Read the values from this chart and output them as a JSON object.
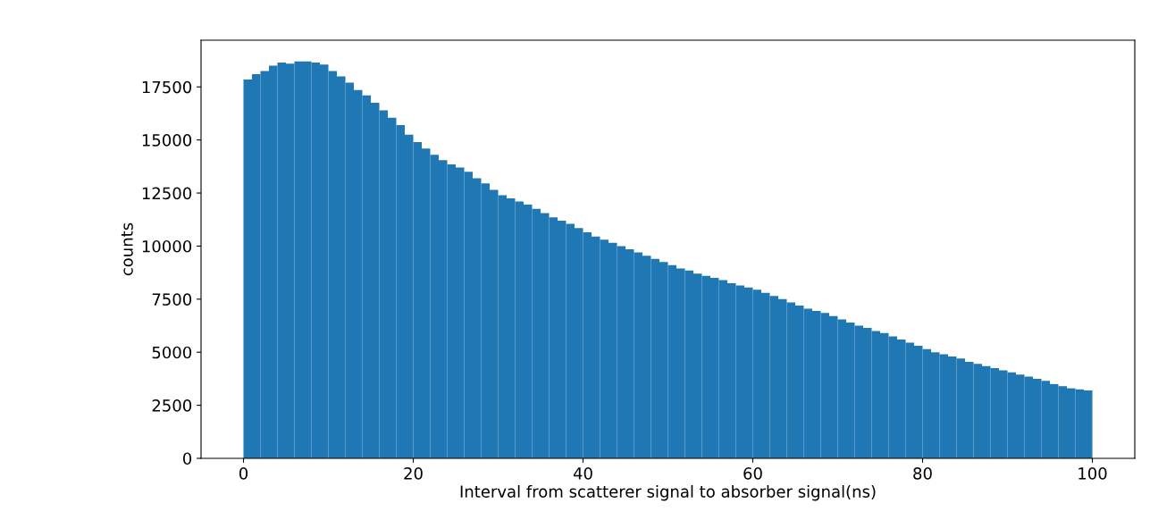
{
  "chart_data": {
    "type": "histogram",
    "xlabel": "Interval from scatterer signal to absorber signal(ns)",
    "ylabel": "counts",
    "color": "#1f77b4",
    "bins": [
      0,
      1,
      2,
      3,
      4,
      5,
      6,
      7,
      8,
      9,
      10,
      11,
      12,
      13,
      14,
      15,
      16,
      17,
      18,
      19,
      20,
      21,
      22,
      23,
      24,
      25,
      26,
      27,
      28,
      29,
      30,
      31,
      32,
      33,
      34,
      35,
      36,
      37,
      38,
      39,
      40,
      41,
      42,
      43,
      44,
      45,
      46,
      47,
      48,
      49,
      50,
      51,
      52,
      53,
      54,
      55,
      56,
      57,
      58,
      59,
      60,
      61,
      62,
      63,
      64,
      65,
      66,
      67,
      68,
      69,
      70,
      71,
      72,
      73,
      74,
      75,
      76,
      77,
      78,
      79,
      80,
      81,
      82,
      83,
      84,
      85,
      86,
      87,
      88,
      89,
      90,
      91,
      92,
      93,
      94,
      95,
      96,
      97,
      98,
      99,
      100
    ],
    "values": [
      17850,
      18100,
      18250,
      18500,
      18650,
      18600,
      18700,
      18700,
      18650,
      18550,
      18250,
      18000,
      17700,
      17350,
      17100,
      16750,
      16400,
      16050,
      15700,
      15250,
      14900,
      14600,
      14300,
      14050,
      13850,
      13700,
      13500,
      13200,
      12950,
      12650,
      12400,
      12250,
      12100,
      11950,
      11750,
      11550,
      11350,
      11200,
      11050,
      10850,
      10650,
      10450,
      10300,
      10150,
      10000,
      9850,
      9700,
      9550,
      9400,
      9250,
      9100,
      8950,
      8850,
      8700,
      8600,
      8500,
      8400,
      8250,
      8150,
      8050,
      7950,
      7800,
      7650,
      7500,
      7350,
      7200,
      7050,
      6950,
      6850,
      6700,
      6550,
      6400,
      6250,
      6150,
      6000,
      5900,
      5750,
      5600,
      5450,
      5300,
      5150,
      5000,
      4900,
      4800,
      4700,
      4550,
      4450,
      4350,
      4250,
      4150,
      4050,
      3950,
      3850,
      3750,
      3650,
      3500,
      3400,
      3300,
      3250,
      3200
    ],
    "xlim": [
      -5,
      105
    ],
    "xticks": [
      0,
      20,
      40,
      60,
      80,
      100
    ],
    "ylim": [
      0,
      19700
    ],
    "yticks": [
      0,
      2500,
      5000,
      7500,
      10000,
      12500,
      15000,
      17500
    ],
    "grid": false
  }
}
